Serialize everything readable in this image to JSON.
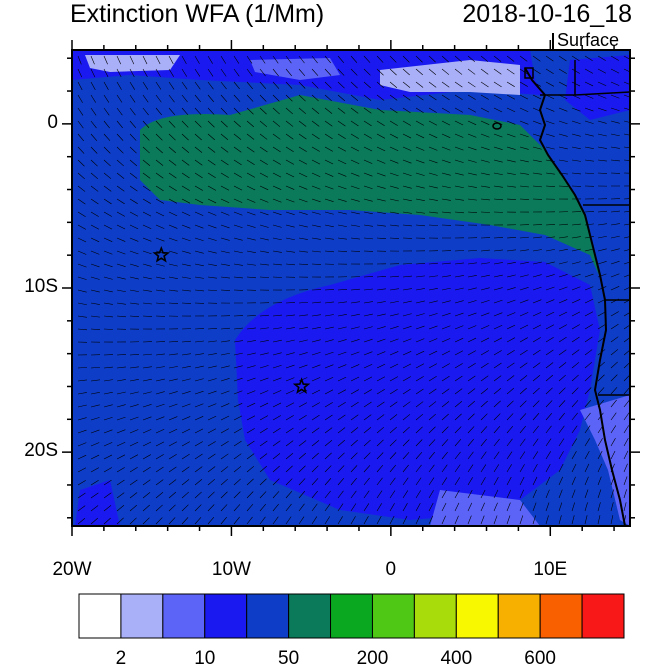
{
  "header": {
    "title": "Extinction WFA (1/Mm)",
    "datetime": "2018-10-16_18",
    "level": "Surface"
  },
  "axes": {
    "x_ticks": [
      "20W",
      "10W",
      "0",
      "10E"
    ],
    "y_ticks": [
      "0",
      "10S",
      "20S"
    ],
    "lon_range": [
      -20,
      15
    ],
    "lat_range": [
      -24.5,
      4.5
    ]
  },
  "colorbar": {
    "colors": [
      "#ffffff",
      "#aab0f8",
      "#5c64f8",
      "#1a1af0",
      "#0e3ec8",
      "#0a7a5a",
      "#0aa820",
      "#4ec814",
      "#a8dc0a",
      "#f8f800",
      "#f8b000",
      "#f86000",
      "#f81818"
    ],
    "labels": [
      "2",
      "10",
      "50",
      "200",
      "400",
      "600"
    ]
  },
  "markers": [
    {
      "name": "star-marker",
      "lon": -14.4,
      "lat": -8.0
    },
    {
      "name": "star-marker",
      "lon": -5.6,
      "lat": -16.0
    }
  ]
}
